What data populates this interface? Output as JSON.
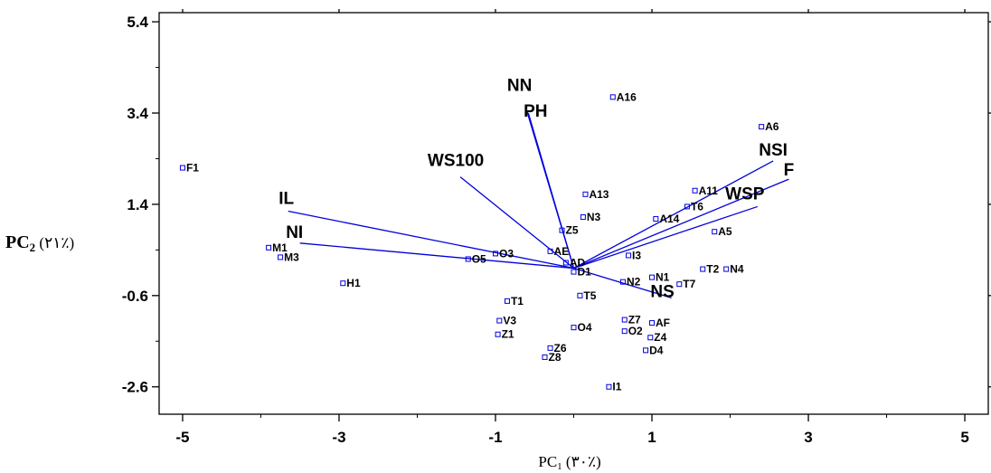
{
  "chart_data": {
    "type": "scatter",
    "subtype": "pca-biplot",
    "xlabel": {
      "main": "PC",
      "sub": "1",
      "suffix": " (۳۰٪)"
    },
    "ylabel": {
      "main": "PC",
      "sub": "2",
      "suffix": " (۲۱٪)"
    },
    "xlim": [
      -5.3,
      5.3
    ],
    "ylim": [
      -3.2,
      5.6
    ],
    "xticks": [
      "-5",
      "-3",
      "-1",
      "1",
      "3",
      "5"
    ],
    "xtick_values": [
      -5,
      -3,
      -1,
      1,
      3,
      5
    ],
    "yticks": [
      "5.4",
      "3.4",
      "1.4",
      "-0.6",
      "-2.6"
    ],
    "ytick_values": [
      5.4,
      3.4,
      1.4,
      -0.6,
      -2.6
    ],
    "grid": false,
    "colors": {
      "vectors": "#0000dd",
      "markers": "#0000dd",
      "axes": "#000000"
    },
    "vector_origin": [
      0,
      0
    ],
    "vectors": [
      {
        "name": "NN",
        "x": -0.6,
        "y": 3.45
      },
      {
        "name": "PH",
        "x": -0.58,
        "y": 3.4
      },
      {
        "name": "WS100",
        "x": -1.45,
        "y": 2.0
      },
      {
        "name": "IL",
        "x": -3.65,
        "y": 1.25
      },
      {
        "name": "NI",
        "x": -3.5,
        "y": 0.55
      },
      {
        "name": "NSI",
        "x": 2.55,
        "y": 2.35
      },
      {
        "name": "F",
        "x": 2.75,
        "y": 1.95
      },
      {
        "name": "WSP",
        "x": 2.35,
        "y": 1.35
      },
      {
        "name": "NS",
        "x": 1.25,
        "y": -0.65
      }
    ],
    "points": [
      {
        "label": "F1",
        "x": -5.0,
        "y": 2.2
      },
      {
        "label": "M1",
        "x": -3.9,
        "y": 0.45
      },
      {
        "label": "M3",
        "x": -3.75,
        "y": 0.24
      },
      {
        "label": "H1",
        "x": -2.95,
        "y": -0.33
      },
      {
        "label": "O3",
        "x": -1.0,
        "y": 0.32
      },
      {
        "label": "O5",
        "x": -1.35,
        "y": 0.2
      },
      {
        "label": "T1",
        "x": -0.85,
        "y": -0.72
      },
      {
        "label": "V3",
        "x": -0.95,
        "y": -1.15
      },
      {
        "label": "Z1",
        "x": -0.97,
        "y": -1.45
      },
      {
        "label": "Z6",
        "x": -0.3,
        "y": -1.75
      },
      {
        "label": "Z8",
        "x": -0.37,
        "y": -1.95
      },
      {
        "label": "AE",
        "x": -0.3,
        "y": 0.37
      },
      {
        "label": "AD",
        "x": -0.1,
        "y": 0.12
      },
      {
        "label": "D1",
        "x": 0.0,
        "y": -0.08
      },
      {
        "label": "Z5",
        "x": -0.15,
        "y": 0.83
      },
      {
        "label": "A13",
        "x": 0.15,
        "y": 1.62
      },
      {
        "label": "N3",
        "x": 0.12,
        "y": 1.12
      },
      {
        "label": "A16",
        "x": 0.5,
        "y": 3.75
      },
      {
        "label": "T5",
        "x": 0.08,
        "y": -0.6
      },
      {
        "label": "O4",
        "x": 0.0,
        "y": -1.3
      },
      {
        "label": "I3",
        "x": 0.7,
        "y": 0.28
      },
      {
        "label": "N2",
        "x": 0.63,
        "y": -0.3
      },
      {
        "label": "N1",
        "x": 1.0,
        "y": -0.2
      },
      {
        "label": "Z7",
        "x": 0.65,
        "y": -1.13
      },
      {
        "label": "O2",
        "x": 0.65,
        "y": -1.38
      },
      {
        "label": "AF",
        "x": 1.0,
        "y": -1.2
      },
      {
        "label": "Z4",
        "x": 0.98,
        "y": -1.52
      },
      {
        "label": "D4",
        "x": 0.92,
        "y": -1.8
      },
      {
        "label": "I1",
        "x": 0.45,
        "y": -2.6
      },
      {
        "label": "A14",
        "x": 1.05,
        "y": 1.08
      },
      {
        "label": "T6",
        "x": 1.45,
        "y": 1.35
      },
      {
        "label": "A11",
        "x": 1.55,
        "y": 1.7
      },
      {
        "label": "A6",
        "x": 2.4,
        "y": 3.1
      },
      {
        "label": "A5",
        "x": 1.8,
        "y": 0.8
      },
      {
        "label": "T2",
        "x": 1.65,
        "y": -0.02
      },
      {
        "label": "N4",
        "x": 1.95,
        "y": -0.02
      },
      {
        "label": "T7",
        "x": 1.35,
        "y": -0.35
      }
    ]
  }
}
